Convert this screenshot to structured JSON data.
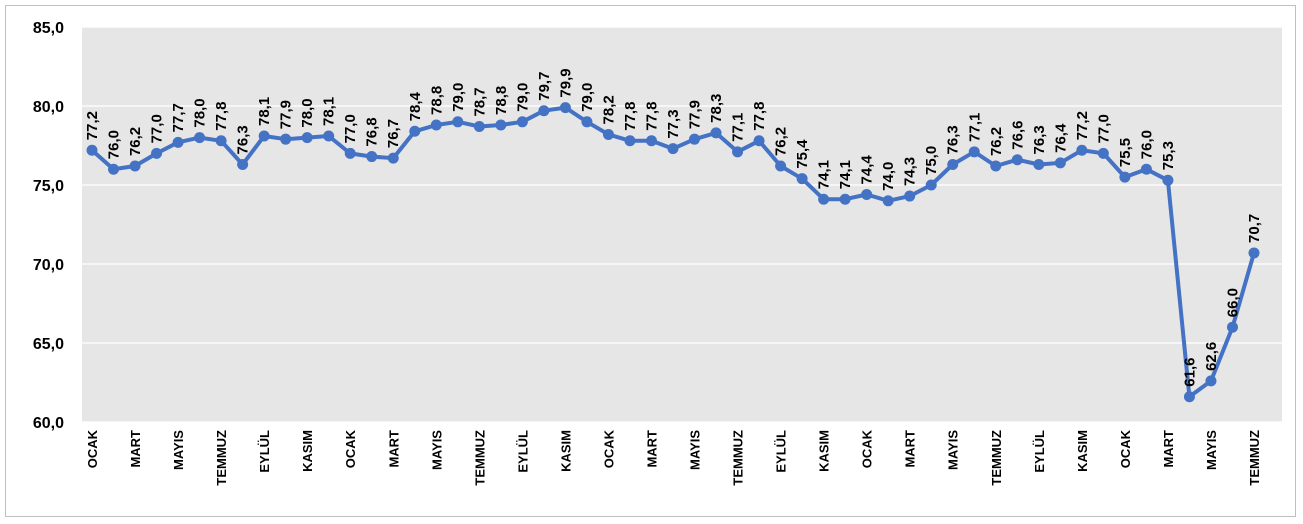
{
  "chart_data": {
    "type": "line",
    "title": "",
    "xlabel": "",
    "ylabel": "",
    "ylim": [
      60,
      85
    ],
    "y_ticks": [
      "60,0",
      "65,0",
      "70,0",
      "75,0",
      "80,0",
      "85,0"
    ],
    "grid": true,
    "legend": "none",
    "plot_background": "#e7e6e6",
    "series_color": "#4472c4",
    "x_tick_labels": [
      "OCAK",
      "MART",
      "MAYIS",
      "TEMMUZ",
      "EYLÜL",
      "KASIM",
      "OCAK",
      "MART",
      "MAYIS",
      "TEMMUZ",
      "EYLÜL",
      "KASIM",
      "OCAK",
      "MART",
      "MAYIS",
      "TEMMUZ",
      "EYLÜL",
      "KASIM",
      "OCAK",
      "MART",
      "MAYIS",
      "TEMMUZ",
      "EYLÜL",
      "KASIM",
      "OCAK",
      "MART",
      "MAYIS",
      "TEMMUZ"
    ],
    "series": [
      {
        "values": [
          77.2,
          76.0,
          76.2,
          77.0,
          77.7,
          78.0,
          77.8,
          76.3,
          78.1,
          77.9,
          78.0,
          78.1,
          77.0,
          76.8,
          76.7,
          78.4,
          78.8,
          79.0,
          78.7,
          78.8,
          79.0,
          79.7,
          79.9,
          79.0,
          78.2,
          77.8,
          77.8,
          77.3,
          77.9,
          78.3,
          77.1,
          77.8,
          76.2,
          75.4,
          74.1,
          74.1,
          74.4,
          74.0,
          74.3,
          75.0,
          76.3,
          77.1,
          76.2,
          76.6,
          76.3,
          76.4,
          77.2,
          77.0,
          75.5,
          76.0,
          75.3,
          61.6,
          62.6,
          66.0,
          70.7
        ],
        "labels": [
          "77,2",
          "76,0",
          "76,2",
          "77,0",
          "77,7",
          "78,0",
          "77,8",
          "76,3",
          "78,1",
          "77,9",
          "78,0",
          "78,1",
          "77,0",
          "76,8",
          "76,7",
          "78,4",
          "78,8",
          "79,0",
          "78,7",
          "78,8",
          "79,0",
          "79,7",
          "79,9",
          "79,0",
          "78,2",
          "77,8",
          "77,8",
          "77,3",
          "77,9",
          "78,3",
          "77,1",
          "77,8",
          "76,2",
          "75,4",
          "74,1",
          "74,1",
          "74,4",
          "74,0",
          "74,3",
          "75,0",
          "76,3",
          "77,1",
          "76,2",
          "76,6",
          "76,3",
          "76,4",
          "77,2",
          "77,0",
          "75,5",
          "76,0",
          "75,3",
          "61,6",
          "62,6",
          "66,0",
          "70,7"
        ]
      }
    ]
  }
}
